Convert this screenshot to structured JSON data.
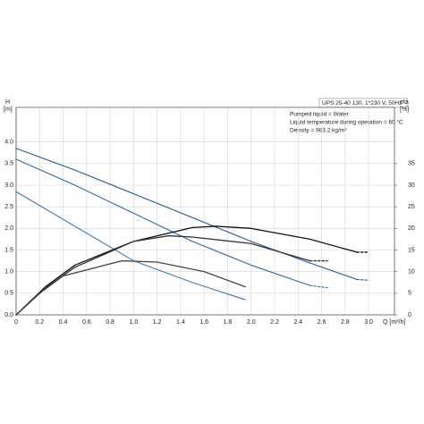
{
  "chart_data": {
    "type": "line",
    "legend_title": "UPS 25-40 130, 1*230 V, 50Hz",
    "annotations": [
      "Pumped liquid = Water",
      "Liquid temperature during operation = 60 °C",
      "Density = 983.2 kg/m³"
    ],
    "xlabel": "Q [m³/h]",
    "ylabel": [
      "H",
      "[m]"
    ],
    "y2label": [
      "eta",
      "[%]"
    ],
    "xlim": [
      0,
      3.22
    ],
    "ylim": [
      0,
      4.8
    ],
    "y2lim": [
      0,
      48
    ],
    "xticks": [
      0,
      0.2,
      0.4,
      0.6,
      0.8,
      {
        "value": 1,
        "label": "1.0"
      },
      1.2,
      1.4,
      1.6,
      1.8,
      {
        "value": 2,
        "label": "2.0"
      },
      2.2,
      2.4,
      2.6,
      2.8,
      {
        "value": 3,
        "label": "3.0"
      }
    ],
    "yticks": [
      {
        "value": 0,
        "label": "0.0"
      },
      0.5,
      {
        "value": 1,
        "label": "1.0"
      },
      1.5,
      {
        "value": 2,
        "label": "2.0"
      },
      2.5,
      {
        "value": 3,
        "label": "3.0"
      },
      3.5,
      {
        "value": 4,
        "label": "4.0"
      }
    ],
    "y2ticks": [
      0,
      5,
      10,
      15,
      20,
      25,
      30,
      35
    ],
    "grid": true,
    "series": [
      {
        "color": "#1f5a96",
        "x": [
          0,
          0.5,
          1.0,
          1.5,
          2.0,
          2.5,
          2.9
        ],
        "values": [
          3.85,
          3.35,
          2.8,
          2.25,
          1.7,
          1.2,
          0.82
        ]
      },
      {
        "color": "#1f5a96",
        "dashed": true,
        "x": [
          2.9,
          3.0
        ],
        "values": [
          0.82,
          0.8
        ]
      },
      {
        "color": "#2a6aa8",
        "x": [
          0,
          0.5,
          1.0,
          1.5,
          2.0,
          2.5
        ],
        "values": [
          3.6,
          3.0,
          2.35,
          1.7,
          1.15,
          0.68
        ]
      },
      {
        "color": "#2a6aa8",
        "dashed": true,
        "x": [
          2.5,
          2.65
        ],
        "values": [
          0.68,
          0.63
        ]
      },
      {
        "color": "#3a78b4",
        "x": [
          0,
          0.5,
          1.0,
          1.5,
          1.95
        ],
        "values": [
          2.85,
          2.05,
          1.25,
          0.75,
          0.35
        ]
      },
      {
        "color": "#111111",
        "axis": "y2",
        "x": [
          0,
          0.25,
          0.5,
          1.0,
          1.5,
          1.7,
          2.0,
          2.5,
          2.9
        ],
        "values": [
          0,
          6.5,
          11.5,
          17,
          20.2,
          20.5,
          20,
          17.5,
          14.5
        ]
      },
      {
        "color": "#111111",
        "axis": "y2",
        "dashed": true,
        "x": [
          2.9,
          3.0
        ],
        "values": [
          14.5,
          14.5
        ]
      },
      {
        "color": "#333333",
        "axis": "y2",
        "x": [
          0,
          0.25,
          0.5,
          1.0,
          1.3,
          1.5,
          2.0,
          2.5
        ],
        "values": [
          0,
          6.2,
          11,
          17,
          18.3,
          18,
          16.5,
          12.5
        ]
      },
      {
        "color": "#333333",
        "axis": "y2",
        "dashed": true,
        "x": [
          2.5,
          2.65
        ],
        "values": [
          12.5,
          12.5
        ]
      },
      {
        "color": "#444444",
        "axis": "y2",
        "x": [
          0,
          0.2,
          0.4,
          0.9,
          1.2,
          1.6,
          1.95
        ],
        "values": [
          0,
          5,
          9,
          12.5,
          12.2,
          10,
          6.5
        ]
      }
    ]
  }
}
